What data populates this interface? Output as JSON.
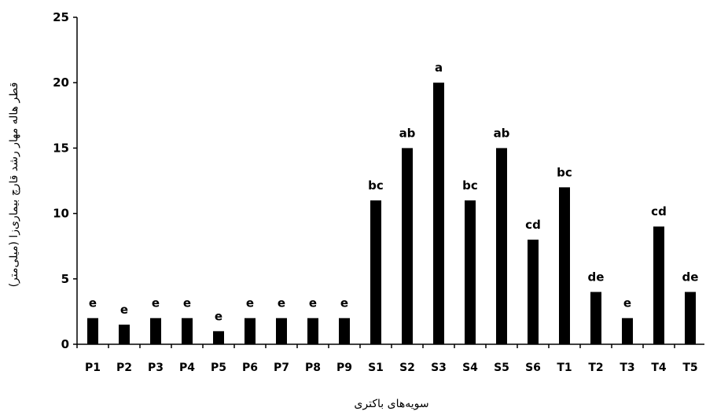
{
  "chart_data": {
    "type": "bar",
    "categories": [
      "P1",
      "P2",
      "P3",
      "P4",
      "P5",
      "P6",
      "P7",
      "P8",
      "P9",
      "S1",
      "S2",
      "S3",
      "S4",
      "S5",
      "S6",
      "T1",
      "T2",
      "T3",
      "T4",
      "T5"
    ],
    "values": [
      2,
      1.5,
      2,
      2,
      1,
      2,
      2,
      2,
      2,
      11,
      15,
      20,
      11,
      15,
      8,
      12,
      4,
      2,
      9,
      4
    ],
    "labels": [
      "e",
      "e",
      "e",
      "e",
      "e",
      "e",
      "e",
      "e",
      "e",
      "bc",
      "ab",
      "a",
      "bc",
      "ab",
      "cd",
      "bc",
      "de",
      "e",
      "cd",
      "de"
    ],
    "xlabel": "سویه‌های باکتری",
    "ylabel": "قطر هاله مهار رشد قارچ بیماری‌زا (میلی‌متر)",
    "ylim": [
      0,
      25
    ],
    "yticks": [
      0,
      5,
      10,
      15,
      20,
      25
    ],
    "bar_color": "#000000",
    "grid": false,
    "legend": "none"
  }
}
